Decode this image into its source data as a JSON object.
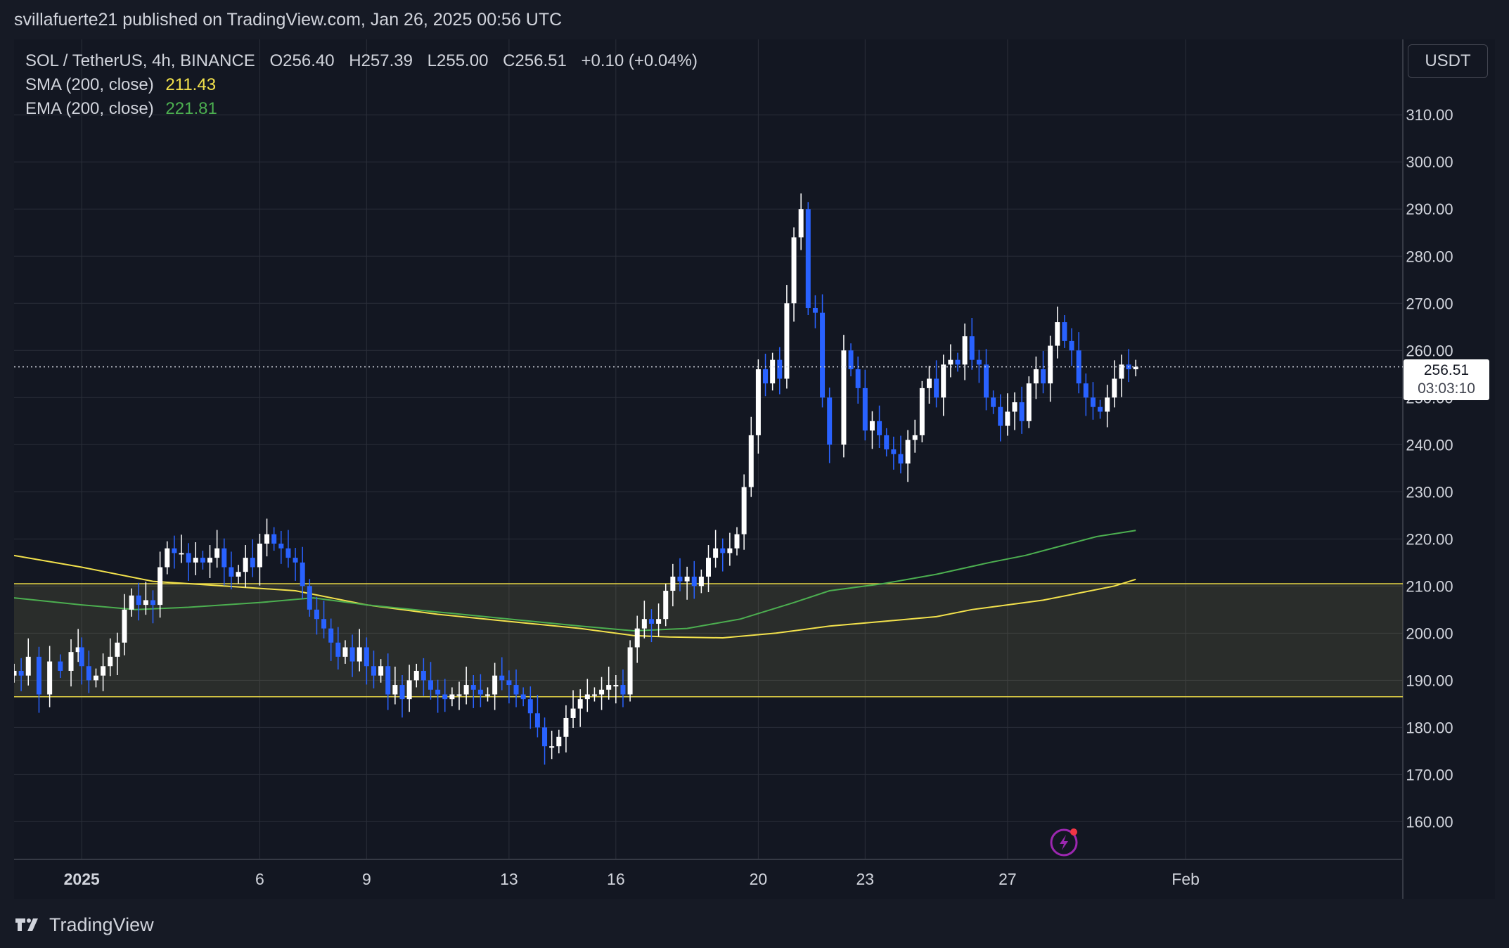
{
  "header": {
    "published_text": "svillafuerte21 published on TradingView.com, Jan 26, 2025 00:56 UTC"
  },
  "legend": {
    "symbol": "SOL / TetherUS, 4h, BINANCE",
    "open": "O256.40",
    "high": "H257.39",
    "low": "L255.00",
    "close": "C256.51",
    "change": "+0.10 (+0.04%)",
    "sma_label": "SMA (200, close)",
    "sma_value": "211.43",
    "ema_label": "EMA (200, close)",
    "ema_value": "221.81"
  },
  "toolbar": {
    "currency": "USDT"
  },
  "last_price": {
    "price": "256.51",
    "countdown": "03:03:10"
  },
  "footer": {
    "brand": "TradingView"
  },
  "colors": {
    "background": "#131722",
    "grid": "#2a2e39",
    "up_candle": "#ffffff",
    "down_candle": "#2962ff",
    "sma": "#f2e14c",
    "ema": "#4caf50",
    "zone_border": "#e6d545"
  },
  "chart_data": {
    "type": "candlestick",
    "symbol": "SOL / TetherUS",
    "interval": "4h",
    "exchange": "BINANCE",
    "y_axis": {
      "range": [
        152,
        326
      ],
      "ticks": [
        "310.00",
        "300.00",
        "290.00",
        "280.00",
        "270.00",
        "260.00",
        "250.00",
        "240.00",
        "230.00",
        "220.00",
        "210.00",
        "200.00",
        "190.00",
        "180.00",
        "170.00",
        "160.00"
      ]
    },
    "x_axis": {
      "range_days": [
        -1.9,
        37.1
      ],
      "ticks": [
        {
          "day": 0,
          "label": "2025",
          "bold": true
        },
        {
          "day": 5,
          "label": "6"
        },
        {
          "day": 8,
          "label": "9"
        },
        {
          "day": 12,
          "label": "13"
        },
        {
          "day": 15,
          "label": "16"
        },
        {
          "day": 19,
          "label": "20"
        },
        {
          "day": 22,
          "label": "23"
        },
        {
          "day": 26,
          "label": "27"
        },
        {
          "day": 31,
          "label": "Feb"
        }
      ]
    },
    "grid": true,
    "zone": {
      "low": 186.5,
      "high": 210.5
    },
    "current_price": 256.51,
    "candles_close": [
      [
        -1.9,
        192
      ],
      [
        -1.7,
        191
      ],
      [
        -1.5,
        195
      ],
      [
        -1.2,
        187
      ],
      [
        -0.9,
        194
      ],
      [
        -0.6,
        192
      ],
      [
        -0.3,
        196
      ],
      [
        -0.1,
        197
      ],
      [
        0.0,
        193
      ],
      [
        0.2,
        190
      ],
      [
        0.4,
        191
      ],
      [
        0.6,
        193
      ],
      [
        0.8,
        195
      ],
      [
        1.0,
        198
      ],
      [
        1.2,
        205
      ],
      [
        1.4,
        208
      ],
      [
        1.6,
        206
      ],
      [
        1.8,
        207
      ],
      [
        2.0,
        206
      ],
      [
        2.2,
        214
      ],
      [
        2.4,
        218
      ],
      [
        2.6,
        217
      ],
      [
        2.8,
        217
      ],
      [
        3.0,
        215
      ],
      [
        3.2,
        216
      ],
      [
        3.4,
        215
      ],
      [
        3.6,
        216
      ],
      [
        3.8,
        218
      ],
      [
        4.0,
        214
      ],
      [
        4.2,
        212
      ],
      [
        4.4,
        213
      ],
      [
        4.6,
        216
      ],
      [
        4.8,
        214
      ],
      [
        5.0,
        219
      ],
      [
        5.2,
        221
      ],
      [
        5.4,
        219
      ],
      [
        5.6,
        218
      ],
      [
        5.8,
        216
      ],
      [
        6.0,
        215
      ],
      [
        6.2,
        210
      ],
      [
        6.4,
        205
      ],
      [
        6.6,
        203
      ],
      [
        6.8,
        201
      ],
      [
        7.0,
        198
      ],
      [
        7.2,
        195
      ],
      [
        7.4,
        197
      ],
      [
        7.6,
        194
      ],
      [
        7.8,
        197
      ],
      [
        8.0,
        193
      ],
      [
        8.2,
        191
      ],
      [
        8.4,
        193
      ],
      [
        8.6,
        187
      ],
      [
        8.8,
        189
      ],
      [
        9.0,
        186
      ],
      [
        9.2,
        190
      ],
      [
        9.4,
        192
      ],
      [
        9.6,
        190
      ],
      [
        9.8,
        188
      ],
      [
        10.0,
        187
      ],
      [
        10.2,
        186
      ],
      [
        10.4,
        187
      ],
      [
        10.6,
        187
      ],
      [
        10.8,
        189
      ],
      [
        11.0,
        188
      ],
      [
        11.2,
        187
      ],
      [
        11.4,
        187
      ],
      [
        11.6,
        191
      ],
      [
        11.8,
        190
      ],
      [
        12.0,
        189
      ],
      [
        12.2,
        187
      ],
      [
        12.4,
        186
      ],
      [
        12.6,
        183
      ],
      [
        12.8,
        180
      ],
      [
        13.0,
        176
      ],
      [
        13.2,
        176
      ],
      [
        13.4,
        178
      ],
      [
        13.6,
        182
      ],
      [
        13.8,
        184
      ],
      [
        14.0,
        186
      ],
      [
        14.2,
        187
      ],
      [
        14.4,
        187
      ],
      [
        14.6,
        188
      ],
      [
        14.8,
        189
      ],
      [
        15.0,
        189
      ],
      [
        15.2,
        187
      ],
      [
        15.4,
        197
      ],
      [
        15.6,
        201
      ],
      [
        15.8,
        203
      ],
      [
        16.0,
        202
      ],
      [
        16.2,
        203
      ],
      [
        16.4,
        209
      ],
      [
        16.6,
        212
      ],
      [
        16.8,
        211
      ],
      [
        17.0,
        212
      ],
      [
        17.2,
        210
      ],
      [
        17.4,
        212
      ],
      [
        17.6,
        216
      ],
      [
        17.8,
        218
      ],
      [
        18.0,
        217
      ],
      [
        18.2,
        218
      ],
      [
        18.4,
        221
      ],
      [
        18.6,
        231
      ],
      [
        18.8,
        242
      ],
      [
        19.0,
        256
      ],
      [
        19.2,
        253
      ],
      [
        19.4,
        258
      ],
      [
        19.6,
        254
      ],
      [
        19.8,
        270
      ],
      [
        20.0,
        284
      ],
      [
        20.2,
        290
      ],
      [
        20.4,
        269
      ],
      [
        20.6,
        268
      ],
      [
        20.8,
        250
      ],
      [
        21.0,
        240
      ],
      [
        21.4,
        260
      ],
      [
        21.6,
        256
      ],
      [
        21.8,
        252
      ],
      [
        22.0,
        243
      ],
      [
        22.2,
        245
      ],
      [
        22.4,
        242
      ],
      [
        22.6,
        239
      ],
      [
        22.8,
        238
      ],
      [
        23.0,
        236
      ],
      [
        23.2,
        241
      ],
      [
        23.4,
        242
      ],
      [
        23.6,
        252
      ],
      [
        23.8,
        254
      ],
      [
        24.0,
        250
      ],
      [
        24.2,
        257
      ],
      [
        24.4,
        258
      ],
      [
        24.6,
        257
      ],
      [
        24.8,
        263
      ],
      [
        25.0,
        258
      ],
      [
        25.2,
        257
      ],
      [
        25.4,
        250
      ],
      [
        25.6,
        248
      ],
      [
        25.8,
        244
      ],
      [
        26.0,
        247
      ],
      [
        26.2,
        249
      ],
      [
        26.4,
        245
      ],
      [
        26.6,
        253
      ],
      [
        26.8,
        256
      ],
      [
        27.0,
        253
      ],
      [
        27.2,
        261
      ],
      [
        27.4,
        266
      ],
      [
        27.6,
        262
      ],
      [
        27.8,
        260
      ],
      [
        28.0,
        253
      ],
      [
        28.2,
        250
      ],
      [
        28.4,
        248
      ],
      [
        28.6,
        247
      ],
      [
        28.8,
        250
      ],
      [
        29.0,
        254
      ],
      [
        29.2,
        257
      ],
      [
        29.4,
        256
      ],
      [
        29.6,
        256.51
      ]
    ],
    "series": [
      {
        "name": "SMA (200, close)",
        "color": "#f2e14c",
        "points": [
          [
            -1.9,
            216.5
          ],
          [
            0.0,
            214
          ],
          [
            2.0,
            211
          ],
          [
            4.0,
            210
          ],
          [
            6.0,
            209
          ],
          [
            8.0,
            206
          ],
          [
            10.0,
            204
          ],
          [
            12.0,
            202.5
          ],
          [
            14.0,
            201
          ],
          [
            15.5,
            199.5
          ],
          [
            16.5,
            199.2
          ],
          [
            18.0,
            199
          ],
          [
            19.5,
            200
          ],
          [
            21.0,
            201.5
          ],
          [
            22.5,
            202.5
          ],
          [
            24.0,
            203.5
          ],
          [
            25.0,
            205
          ],
          [
            26.0,
            206
          ],
          [
            27.0,
            207
          ],
          [
            28.0,
            208.5
          ],
          [
            29.0,
            210
          ],
          [
            29.6,
            211.43
          ]
        ]
      },
      {
        "name": "EMA (200, close)",
        "color": "#4caf50",
        "points": [
          [
            -1.9,
            207.5
          ],
          [
            0.0,
            206
          ],
          [
            1.5,
            205
          ],
          [
            3.0,
            205.5
          ],
          [
            5.0,
            206.5
          ],
          [
            6.5,
            207.5
          ],
          [
            8.0,
            206
          ],
          [
            10.0,
            204.5
          ],
          [
            12.0,
            203
          ],
          [
            14.0,
            201.5
          ],
          [
            15.5,
            200.5
          ],
          [
            17.0,
            201
          ],
          [
            18.5,
            203
          ],
          [
            20.0,
            206.5
          ],
          [
            21.0,
            209
          ],
          [
            22.5,
            210.5
          ],
          [
            24.0,
            212.5
          ],
          [
            25.5,
            215
          ],
          [
            26.5,
            216.5
          ],
          [
            27.5,
            218.5
          ],
          [
            28.5,
            220.5
          ],
          [
            29.6,
            221.81
          ]
        ]
      }
    ]
  }
}
